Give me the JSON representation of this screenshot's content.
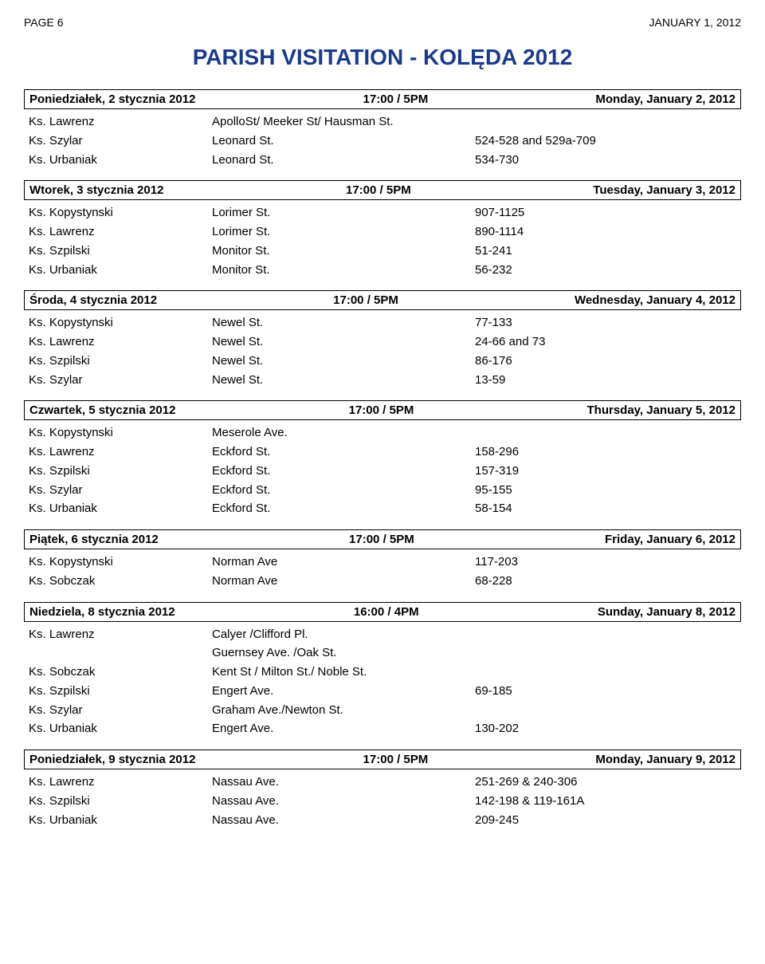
{
  "header": {
    "left": "PAGE 6",
    "right": "JANUARY 1, 2012"
  },
  "title": "PARISH VISITATION  - KOLĘDA 2012",
  "days": [
    {
      "left": "Poniedziałek, 2 stycznia 2012",
      "center": "17:00 / 5PM",
      "right": "Monday, January 2, 2012",
      "rows": [
        {
          "priest": "Ks. Lawrenz",
          "street": "ApolloSt/ Meeker St/ Hausman St.",
          "num": ""
        },
        {
          "priest": "Ks. Szylar",
          "street": "Leonard St.",
          "num": "524-528 and 529a-709"
        },
        {
          "priest": "Ks. Urbaniak",
          "street": "Leonard St.",
          "num": "534-730"
        }
      ]
    },
    {
      "left": "Wtorek, 3 stycznia 2012",
      "center": "17:00 / 5PM",
      "right": "Tuesday, January 3, 2012",
      "rows": [
        {
          "priest": "Ks. Kopystynski",
          "street": "Lorimer St.",
          "num": "907-1125"
        },
        {
          "priest": "Ks. Lawrenz",
          "street": "Lorimer St.",
          "num": "890-1114"
        },
        {
          "priest": "Ks. Szpilski",
          "street": "Monitor St.",
          "num": "51-241"
        },
        {
          "priest": "Ks. Urbaniak",
          "street": "Monitor St.",
          "num": "56-232"
        }
      ]
    },
    {
      "left": "Środa, 4 stycznia 2012",
      "center": "17:00 / 5PM",
      "right": "Wednesday, January 4, 2012",
      "rows": [
        {
          "priest": "Ks. Kopystynski",
          "street": "Newel St.",
          "num": "77-133"
        },
        {
          "priest": "Ks. Lawrenz",
          "street": "Newel St.",
          "num": "24-66 and 73"
        },
        {
          "priest": "Ks. Szpilski",
          "street": "Newel St.",
          "num": "86-176"
        },
        {
          "priest": "Ks. Szylar",
          "street": "Newel St.",
          "num": "13-59"
        }
      ]
    },
    {
      "left": "Czwartek, 5 stycznia 2012",
      "center": "17:00 / 5PM",
      "right": "Thursday, January 5, 2012",
      "rows": [
        {
          "priest": "Ks. Kopystynski",
          "street": "Meserole Ave.",
          "num": ""
        },
        {
          "priest": "Ks. Lawrenz",
          "street": "Eckford St.",
          "num": "158-296"
        },
        {
          "priest": "Ks. Szpilski",
          "street": "Eckford St.",
          "num": "157-319"
        },
        {
          "priest": "Ks. Szylar",
          "street": "Eckford St.",
          "num": "95-155"
        },
        {
          "priest": "Ks. Urbaniak",
          "street": "Eckford St.",
          "num": "58-154"
        }
      ]
    },
    {
      "left": "Piątek, 6 stycznia 2012",
      "center": "17:00 / 5PM",
      "right": "Friday, January 6, 2012",
      "rows": [
        {
          "priest": "Ks. Kopystynski",
          "street": "Norman Ave",
          "num": "117-203"
        },
        {
          "priest": "Ks. Sobczak",
          "street": "Norman Ave",
          "num": "68-228"
        }
      ]
    },
    {
      "left": "Niedziela, 8 stycznia 2012",
      "center": "16:00 / 4PM",
      "right": "Sunday, January 8, 2012",
      "rows": [
        {
          "priest": "Ks. Lawrenz",
          "street": "Calyer /Clifford Pl.",
          "num": ""
        },
        {
          "priest": "",
          "street": "Guernsey Ave. /Oak St.",
          "num": ""
        },
        {
          "priest": "Ks. Sobczak",
          "street": "Kent St / Milton St./ Noble St.",
          "num": ""
        },
        {
          "priest": "Ks. Szpilski",
          "street": "Engert Ave.",
          "num": "69-185"
        },
        {
          "priest": "Ks. Szylar",
          "street": "Graham Ave./Newton St.",
          "num": ""
        },
        {
          "priest": "Ks. Urbaniak",
          "street": "Engert Ave.",
          "num": "130-202"
        }
      ]
    },
    {
      "left": "Poniedziałek, 9 stycznia 2012",
      "center": "17:00 / 5PM",
      "right": "Monday, January 9, 2012",
      "rows": [
        {
          "priest": "Ks. Lawrenz",
          "street": "Nassau Ave.",
          "num": "251-269  &  240-306"
        },
        {
          "priest": "Ks. Szpilski",
          "street": "Nassau Ave.",
          "num": "142-198  &  119-161A"
        },
        {
          "priest": "Ks. Urbaniak",
          "street": "Nassau Ave.",
          "num": "209-245"
        }
      ]
    }
  ]
}
